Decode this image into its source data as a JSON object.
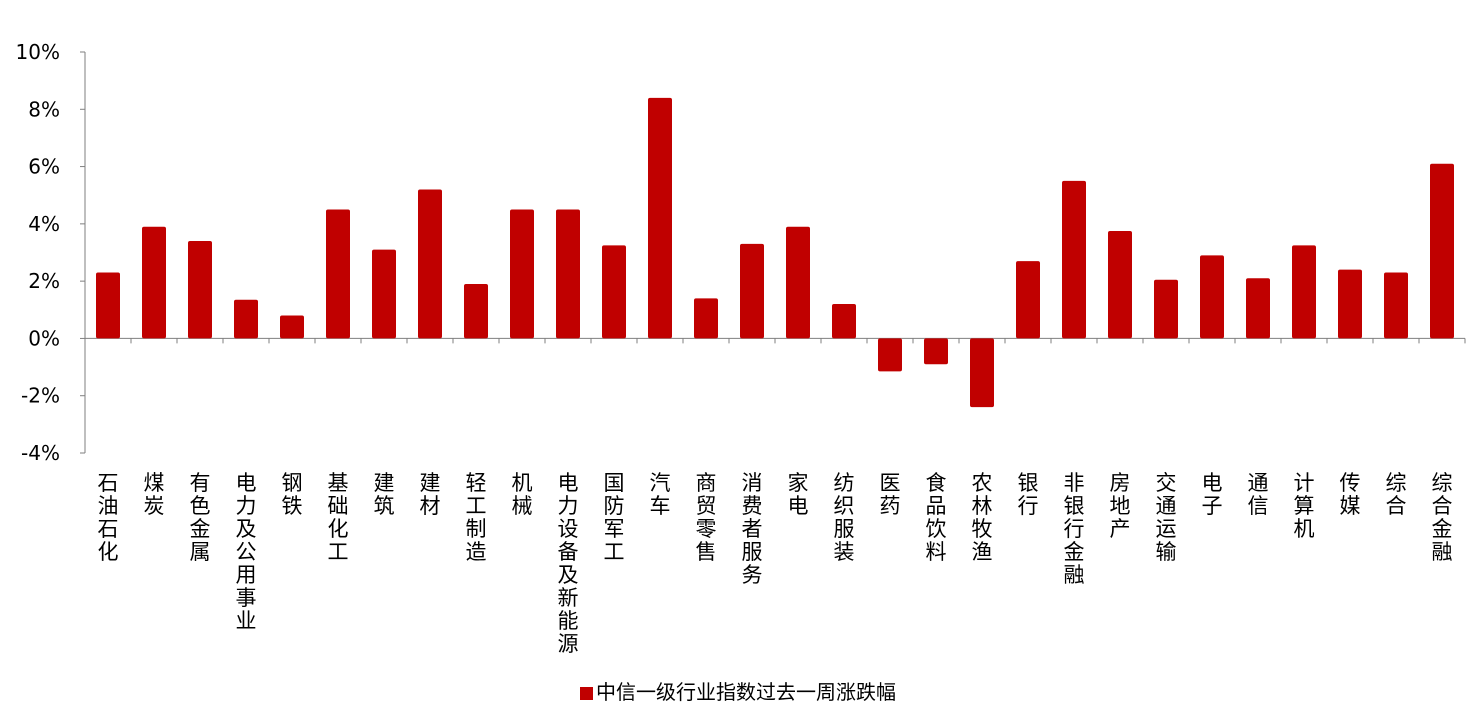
{
  "chart_data": {
    "type": "bar",
    "categories": [
      "石油石化",
      "煤炭",
      "有色金属",
      "电力及公用事业",
      "钢铁",
      "基础化工",
      "建筑",
      "建材",
      "轻工制造",
      "机械",
      "电力设备及新能源",
      "国防军工",
      "汽车",
      "商贸零售",
      "消费者服务",
      "家电",
      "纺织服装",
      "医药",
      "食品饮料",
      "农林牧渔",
      "银行",
      "非银行金融",
      "房地产",
      "交通运输",
      "电子",
      "通信",
      "计算机",
      "传媒",
      "综合",
      "综合金融"
    ],
    "series": [
      {
        "name": "中信一级行业指数过去一周涨跌幅",
        "values": [
          2.3,
          3.9,
          3.4,
          1.35,
          0.8,
          4.5,
          3.1,
          5.2,
          1.9,
          4.5,
          4.5,
          3.25,
          8.4,
          1.4,
          3.3,
          3.9,
          1.2,
          -1.15,
          -0.9,
          -2.4,
          2.7,
          5.5,
          3.75,
          2.05,
          2.9,
          2.1,
          3.25,
          2.4,
          2.3,
          6.1
        ]
      }
    ],
    "ylim": [
      -4,
      10
    ],
    "yticks": [
      "-4%",
      "-2%",
      "0%",
      "2%",
      "4%",
      "6%",
      "8%",
      "10%"
    ],
    "ytick_values": [
      -4,
      -2,
      0,
      2,
      4,
      6,
      8,
      10
    ],
    "title": "",
    "xlabel": "",
    "ylabel": "",
    "legend_position": "bottom",
    "bar_color": "#C00000",
    "grid": false
  },
  "legend": {
    "label": "中信一级行业指数过去一周涨跌幅",
    "color": "#C00000"
  }
}
